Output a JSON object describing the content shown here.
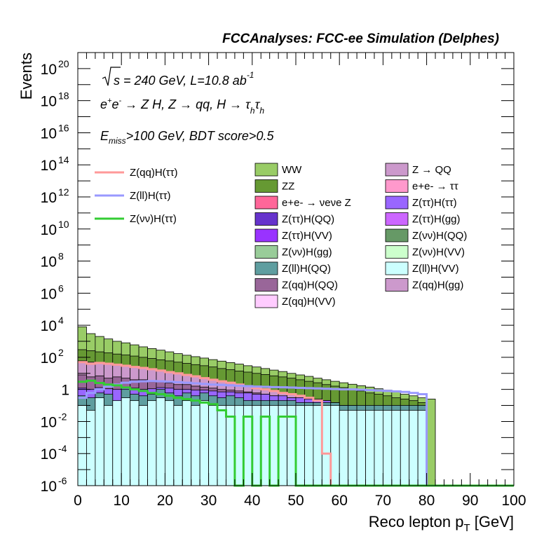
{
  "chart_data": {
    "type": "bar",
    "title": "FCCAnalyses: FCC-ee Simulation (Delphes)",
    "xlabel": "Reco lepton p_T [GeV]",
    "ylabel": "Events",
    "xlim": [
      0,
      100
    ],
    "ylim": [
      1e-06,
      1e+21
    ],
    "yscale": "log",
    "bin_width": 2,
    "x_ticks": [
      "0",
      "10",
      "20",
      "30",
      "40",
      "50",
      "60",
      "70",
      "80",
      "90",
      "100"
    ],
    "y_ticks": [
      {
        "base": "10",
        "exp": "-6"
      },
      {
        "base": "10",
        "exp": "-4"
      },
      {
        "base": "10",
        "exp": "-2"
      },
      {
        "base": "1",
        "exp": ""
      },
      {
        "base": "10",
        "exp": "2"
      },
      {
        "base": "10",
        "exp": "4"
      },
      {
        "base": "10",
        "exp": "6"
      },
      {
        "base": "10",
        "exp": "8"
      },
      {
        "base": "10",
        "exp": "10"
      },
      {
        "base": "10",
        "exp": "12"
      },
      {
        "base": "10",
        "exp": "14"
      },
      {
        "base": "10",
        "exp": "16"
      },
      {
        "base": "10",
        "exp": "18"
      },
      {
        "base": "10",
        "exp": "20"
      }
    ],
    "info_lines": {
      "sqrt_s": "s = 240 GeV, L=10.8 ab",
      "lumi_exp": "-1",
      "process_pre": "e",
      "process_post": " → Z H, Z → qq, H → τ",
      "process_sub": "h",
      "cuts_pre": "E",
      "cuts_sub": "miss",
      "cuts_post": ">100 GeV, BDT score>0.5"
    },
    "stack_totals": [
      {
        "name": "Z(ll)H(VV)",
        "color": "#ccffff",
        "values": [
          0.1,
          0.05,
          0.3,
          0.1,
          0.2,
          0.3,
          0.2,
          0.1,
          0.2,
          0.3,
          0.2,
          0.1,
          0.2,
          0.1,
          0.2,
          0.1,
          0.1,
          0.1,
          0.1,
          0.1,
          0.1,
          0.1,
          0.1,
          0.1,
          0.1,
          0.1,
          0.1,
          0.1,
          0.1,
          0.1,
          0.05,
          0.05,
          0.05,
          0.05,
          0.05,
          0.05,
          0.05,
          0.05,
          0.05,
          0.05,
          0,
          0,
          0,
          0,
          0,
          0,
          0,
          0,
          0,
          0
        ]
      },
      {
        "name": "Z(ll)H(QQ)",
        "color": "#5f9ea0",
        "values": [
          0.4,
          0.3,
          0.6,
          0.5,
          0.1,
          1.0,
          0.5,
          0.4,
          0.5,
          1.0,
          0.6,
          0.4,
          0.6,
          0.4,
          0.6,
          0.4,
          0.3,
          0.4,
          0.3,
          0.2,
          0.2,
          0.2,
          0.2,
          0.2,
          0.2,
          0.15,
          0.15,
          0.15,
          0.15,
          0.15,
          0.1,
          0.1,
          0.1,
          0.1,
          0.1,
          0.1,
          0.1,
          0.1,
          0.1,
          0.1,
          0,
          0,
          0,
          0,
          0,
          0,
          0,
          0,
          0,
          0
        ]
      },
      {
        "name": "Z(ττ)H(ττ)",
        "color": "#9966ff",
        "values": [
          1.2,
          1.0,
          1.3,
          1.1,
          1.0,
          1.4,
          1.2,
          1.0,
          1.1,
          1.3,
          1.2,
          1.0,
          1.0,
          0.9,
          0.9,
          0.8,
          0.7,
          0.7,
          0.6,
          0.6,
          0.5,
          0.5,
          0.4,
          0.4,
          0.3,
          0.3,
          0.25,
          0.2,
          0.2,
          0.15,
          0.1,
          0.1,
          0.08,
          0.06,
          0.05,
          0,
          0,
          0,
          0,
          0,
          0,
          0,
          0,
          0,
          0,
          0,
          0,
          0,
          0,
          0
        ]
      },
      {
        "name": "Z(qq)H(QQ)",
        "color": "#996699",
        "values": [
          8,
          6,
          7,
          5,
          6,
          5,
          4,
          4,
          3,
          3,
          2.5,
          2,
          2,
          1.6,
          1.4,
          1.2,
          1.0,
          0.9,
          0.8,
          0.7,
          0.6,
          0.5,
          0.4,
          0.35,
          0.3,
          0.25,
          0.2,
          0.15,
          0.1,
          0.08,
          0,
          0,
          0,
          0,
          0,
          0,
          0,
          0,
          0,
          0,
          0,
          0,
          0,
          0,
          0,
          0,
          0,
          0,
          0,
          0
        ]
      },
      {
        "name": "Z → QQ",
        "color": "#cc99cc",
        "values": [
          60,
          50,
          45,
          40,
          35,
          30,
          26,
          22,
          18,
          15,
          12,
          10,
          8,
          6.5,
          5,
          4,
          3.2,
          2.5,
          2,
          1.6,
          1.3,
          1.0,
          0.8,
          0.6,
          0.5,
          0.4,
          0.3,
          0.25,
          0.2,
          0.15,
          0.1,
          0.08,
          0.06,
          0.05,
          0,
          0,
          0,
          0,
          0,
          0,
          0,
          0,
          0,
          0,
          0,
          0,
          0,
          0,
          0,
          0
        ]
      },
      {
        "name": "ZZ",
        "color": "#669933",
        "values": [
          300,
          260,
          220,
          190,
          160,
          140,
          120,
          100,
          85,
          70,
          60,
          50,
          42,
          35,
          30,
          25,
          20,
          17,
          14,
          12,
          10,
          8.5,
          7,
          6,
          5,
          4,
          3.2,
          2.6,
          2,
          1.6,
          1.3,
          1.0,
          0.8,
          0.6,
          0.5,
          0.4,
          0.3,
          0.25,
          0.2,
          0.15,
          0,
          0,
          0,
          0,
          0,
          0,
          0,
          0,
          0,
          0
        ]
      },
      {
        "name": "WW",
        "color": "#99cc66",
        "values": [
          8000,
          3000,
          2000,
          1400,
          1000,
          800,
          600,
          450,
          350,
          280,
          220,
          170,
          135,
          110,
          90,
          72,
          58,
          47,
          38,
          30,
          25,
          20,
          16,
          13,
          10,
          8,
          6.5,
          5,
          4,
          3.2,
          2.6,
          2.1,
          1.7,
          1.4,
          1.1,
          0.9,
          0.7,
          0.5,
          0.4,
          0.3,
          0.25,
          0,
          0,
          0,
          0,
          0,
          0,
          0,
          0,
          0
        ]
      }
    ],
    "series": [
      {
        "name": "Z(qq)H(ττ)",
        "color": "#ff9999",
        "values": [
          50,
          40,
          45,
          40,
          35,
          30,
          25,
          22,
          18,
          15,
          12,
          10,
          8,
          6.5,
          5,
          4,
          3.2,
          2.6,
          2.0,
          1.6,
          1.2,
          1.0,
          0.8,
          0.6,
          0.5,
          0.4,
          0.3,
          0.2,
          0.0001,
          1e-07,
          0,
          0,
          0,
          0,
          0,
          0,
          0,
          0,
          0,
          0,
          0,
          0,
          0,
          0,
          0,
          0,
          0,
          0,
          0,
          0
        ]
      },
      {
        "name": "Z(ll)H(ττ)",
        "color": "#9999ff",
        "values": [
          0.3,
          0.6,
          1.0,
          1.5,
          2.0,
          2.6,
          3.0,
          3.2,
          3.3,
          3.2,
          3.0,
          2.8,
          2.6,
          2.4,
          2.2,
          2.0,
          1.9,
          1.8,
          1.7,
          1.6,
          1.5,
          1.45,
          1.4,
          1.35,
          1.3,
          1.25,
          1.2,
          1.15,
          1.1,
          1.05,
          1.0,
          1.0,
          0.95,
          0.9,
          0.85,
          0.8,
          0.75,
          0.7,
          0.6,
          0.5,
          0,
          0,
          0,
          0,
          0,
          0,
          0,
          0,
          0,
          0
        ]
      },
      {
        "name": "Z(νν)H(ττ)",
        "color": "#33cc33",
        "values": [
          3,
          3.5,
          2.5,
          2,
          1.8,
          1.3,
          1.0,
          0.8,
          0.6,
          0.5,
          0.4,
          0.3,
          0.25,
          0.2,
          0.15,
          0.12,
          0.05,
          0.02,
          1e-07,
          0.02,
          1e-07,
          0.02,
          1e-07,
          0.02,
          0.02,
          1e-07,
          1e-07,
          1e-07,
          1e-07,
          1e-07,
          0,
          0,
          0,
          0,
          0,
          0,
          0,
          0,
          0,
          0,
          0,
          0,
          0,
          0,
          0,
          0,
          0,
          0,
          0,
          0
        ]
      }
    ],
    "legend_lines": [
      "Z(qq)H(ττ)",
      "Z(ll)H(ττ)",
      "Z(νν)H(ττ)"
    ],
    "legend_boxes_col1": [
      {
        "label": "WW",
        "color": "#99cc66"
      },
      {
        "label": "ZZ",
        "color": "#669933"
      },
      {
        "label": "e+e- → νeνe Z",
        "color": "#ff6699"
      },
      {
        "label": "Z(ττ)H(QQ)",
        "color": "#6633cc"
      },
      {
        "label": "Z(ττ)H(VV)",
        "color": "#9933ff"
      },
      {
        "label": "Z(νν)H(gg)",
        "color": "#99cc99"
      },
      {
        "label": "Z(ll)H(QQ)",
        "color": "#5f9ea0"
      },
      {
        "label": "Z(qq)H(QQ)",
        "color": "#996699"
      },
      {
        "label": "Z(qq)H(VV)",
        "color": "#ffccff"
      }
    ],
    "legend_boxes_col2": [
      {
        "label": "Z → QQ",
        "color": "#cc99cc"
      },
      {
        "label": "e+e- → ττ",
        "color": "#ff99cc"
      },
      {
        "label": "Z(ττ)H(ττ)",
        "color": "#9966ff"
      },
      {
        "label": "Z(ττ)H(gg)",
        "color": "#cc66ff"
      },
      {
        "label": "Z(νν)H(QQ)",
        "color": "#669966"
      },
      {
        "label": "Z(νν)H(VV)",
        "color": "#ccffcc"
      },
      {
        "label": "Z(ll)H(VV)",
        "color": "#ccffff"
      },
      {
        "label": "Z(qq)H(gg)",
        "color": "#cc99cc"
      }
    ]
  }
}
